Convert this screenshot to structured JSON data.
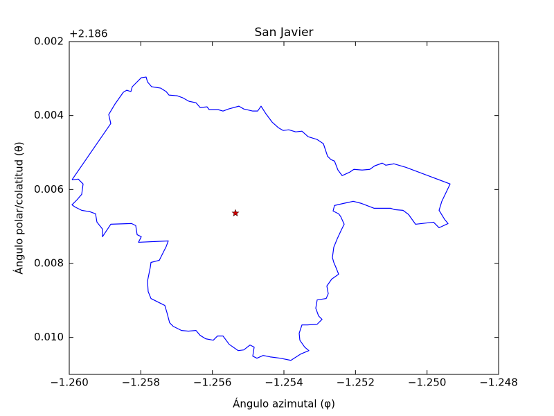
{
  "chart_data": {
    "type": "line",
    "title": "San Javier",
    "x_label": "Ángulo azimutal (φ)",
    "y_label": "Ángulo polar/colatitud (θ)",
    "y_offset_label": "+2.186",
    "xlim": [
      -1.26,
      -1.248
    ],
    "xticks": [
      {
        "value": -1.26,
        "label": "−1.260"
      },
      {
        "value": -1.258,
        "label": "−1.258"
      },
      {
        "value": -1.256,
        "label": "−1.256"
      },
      {
        "value": -1.254,
        "label": "−1.254"
      },
      {
        "value": -1.252,
        "label": "−1.252"
      },
      {
        "value": -1.25,
        "label": "−1.250"
      },
      {
        "value": -1.248,
        "label": "−1.248"
      }
    ],
    "ylim": [
      0.011,
      0.002
    ],
    "yticks": [
      0.002,
      0.004,
      0.006,
      0.008,
      {
        "value": 0.01,
        "label": "0.010"
      }
    ],
    "grid": false,
    "series": [
      {
        "color": "#0000ff",
        "x": [
          -1.259923,
          -1.258839,
          -1.258897,
          -1.258723,
          -1.25849,
          -1.258394,
          -1.258277,
          -1.258239,
          -1.257987,
          -1.257852,
          -1.257813,
          -1.257697,
          -1.257445,
          -1.25729,
          -1.257213,
          -1.256981,
          -1.256826,
          -1.256652,
          -1.256458,
          -1.256342,
          -1.256148,
          -1.25609,
          -1.255839,
          -1.255703,
          -1.255548,
          -1.255258,
          -1.255123,
          -1.254871,
          -1.254735,
          -1.254639,
          -1.254503,
          -1.254329,
          -1.254155,
          -1.254019,
          -1.253864,
          -1.253671,
          -1.253497,
          -1.253323,
          -1.253071,
          -1.252897,
          -1.252781,
          -1.252684,
          -1.252587,
          -1.25249,
          -1.252374,
          -1.252161,
          -1.252045,
          -1.251813,
          -1.2516,
          -1.251464,
          -1.251252,
          -1.251155,
          -1.250923,
          -1.250593,
          -1.249355,
          -1.249587,
          -1.249664,
          -1.24951,
          -1.249413,
          -1.249664,
          -1.249819,
          -1.250322,
          -1.250516,
          -1.250671,
          -1.250903,
          -1.251019,
          -1.251484,
          -1.251832,
          -1.252064,
          -1.252335,
          -1.252587,
          -1.252626,
          -1.252471,
          -1.252413,
          -1.252316,
          -1.252393,
          -1.25251,
          -1.252606,
          -1.252645,
          -1.252606,
          -1.252548,
          -1.252471,
          -1.252664,
          -1.2528,
          -1.252761,
          -1.252819,
          -1.253071,
          -1.25311,
          -1.253032,
          -1.252935,
          -1.253071,
          -1.253342,
          -1.253497,
          -1.253574,
          -1.253555,
          -1.253419,
          -1.253303,
          -1.253535,
          -1.253806,
          -1.254097,
          -1.254387,
          -1.254581,
          -1.254755,
          -1.254871,
          -1.254832,
          -1.254948,
          -1.255123,
          -1.255277,
          -1.255529,
          -1.255703,
          -1.255858,
          -1.255974,
          -1.256187,
          -1.256342,
          -1.256458,
          -1.256671,
          -1.256864,
          -1.257097,
          -1.257194,
          -1.257271,
          -1.257329,
          -1.257484,
          -1.257716,
          -1.257794,
          -1.257813,
          -1.257735,
          -1.257716,
          -1.257484,
          -1.257387,
          -1.25729,
          -1.257232,
          -1.258065,
          -1.257987,
          -1.258103,
          -1.258142,
          -1.258258,
          -1.258839,
          -1.259071,
          -1.259071,
          -1.259226,
          -1.259265,
          -1.259419,
          -1.259652,
          -1.259845,
          -1.259923,
          -1.259787,
          -1.259652,
          -1.259613,
          -1.259748,
          -1.259923
        ],
        "values": [
          0.005737,
          0.004216,
          0.003972,
          0.00369,
          0.003371,
          0.003315,
          0.003352,
          0.003221,
          0.002977,
          0.002958,
          0.003089,
          0.003221,
          0.003258,
          0.003352,
          0.003446,
          0.003465,
          0.003521,
          0.003615,
          0.003653,
          0.003784,
          0.003765,
          0.00384,
          0.00384,
          0.003878,
          0.003822,
          0.003746,
          0.003822,
          0.003878,
          0.003878,
          0.003746,
          0.003953,
          0.004178,
          0.004329,
          0.004404,
          0.004385,
          0.004441,
          0.004422,
          0.004573,
          0.004648,
          0.004761,
          0.005099,
          0.005192,
          0.00523,
          0.005474,
          0.005624,
          0.00553,
          0.005455,
          0.005474,
          0.005455,
          0.005361,
          0.005286,
          0.005343,
          0.005305,
          0.005399,
          0.00585,
          0.006319,
          0.006563,
          0.006807,
          0.00692,
          0.007033,
          0.006883,
          0.006939,
          0.006676,
          0.006563,
          0.006545,
          0.006507,
          0.006507,
          0.006376,
          0.006319,
          0.006376,
          0.006432,
          0.006582,
          0.006657,
          0.006732,
          0.006939,
          0.007089,
          0.007333,
          0.007559,
          0.00784,
          0.007972,
          0.008103,
          0.008291,
          0.008422,
          0.00861,
          0.008817,
          0.008948,
          0.008986,
          0.009211,
          0.009418,
          0.009512,
          0.009643,
          0.009662,
          0.009662,
          0.009887,
          0.010075,
          0.010263,
          0.010357,
          0.010451,
          0.01062,
          0.010563,
          0.010526,
          0.010488,
          0.010563,
          0.010507,
          0.010263,
          0.010206,
          0.010338,
          0.010357,
          0.010188,
          0.009962,
          0.009962,
          0.010075,
          0.010037,
          0.009944,
          0.009812,
          0.009831,
          0.009812,
          0.009699,
          0.009605,
          0.009324,
          0.009136,
          0.009061,
          0.008948,
          0.00876,
          0.008479,
          0.008103,
          0.007972,
          0.007915,
          0.007728,
          0.00754,
          0.00739,
          0.007427,
          0.007277,
          0.007221,
          0.006976,
          0.00692,
          0.006939,
          0.007277,
          0.00707,
          0.006883,
          0.006657,
          0.006601,
          0.006563,
          0.006469,
          0.006413,
          0.006282,
          0.006131,
          0.00585,
          0.005718,
          0.005737
        ]
      },
      {
        "color": "#cc0000",
        "marker": "star",
        "x": [
          -1.255355
        ],
        "values": [
          0.006638
        ]
      }
    ]
  }
}
